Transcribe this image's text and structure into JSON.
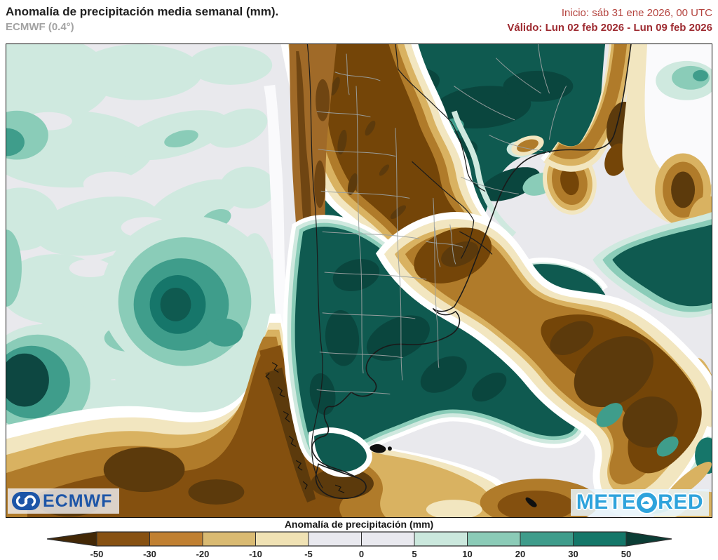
{
  "header": {
    "title": "Anomalía de precipitación media semanal (mm).",
    "model": "ECMWF (0.4°)",
    "init_label": "Inicio:  sáb 31 ene 2026, 00 UTC",
    "valid_label": "Válido: Lun 02 feb 2026 - Lun 09 feb 2026"
  },
  "map": {
    "logos": {
      "ecmwf": "ECMWF",
      "meteored_pre": "METE",
      "meteored_post": "RED"
    }
  },
  "legend": {
    "title": "Anomalía de precipitación (mm)",
    "ticks": [
      "-50",
      "-30",
      "-20",
      "-10",
      "-5",
      "0",
      "5",
      "10",
      "20",
      "30",
      "50"
    ],
    "segment_colors": [
      "#875112",
      "#c08032",
      "#d9ba72",
      "#f0e2b4",
      "#e9e9ef",
      "#e9e9ef",
      "#cbe8dd",
      "#8bcbb7",
      "#3f9c8b",
      "#147769"
    ],
    "arrow_left_color": "#432806",
    "arrow_right_color": "#0b3d35"
  },
  "colors": {
    "base_ocean": "#e9e9ed",
    "teal_5_10": "#cfe9df",
    "teal_10_20": "#8accb8",
    "teal_20_30": "#3f9d8b",
    "teal_30_50": "#16766a",
    "teal_50p": "#0f5a50",
    "teal_deep": "#0a463e",
    "teal_deepest": "#0d4741",
    "cream": "#f2e6c0",
    "tan": "#d9b261",
    "brown_20_30": "#b07b2a",
    "brown_30_50": "#84500f",
    "brown_50m": "#5c3a0c",
    "land_dark_brown": "#744508",
    "andes_ridge": "#a06a28",
    "andes_dark": "#6f4512",
    "border_black": "#1a1a1a",
    "admin_gray": "#9aa0a0",
    "ecmwf_blue": "#1d55a7",
    "meteored_blue": "#2ea3dc",
    "header_red": "#b4433e",
    "header_red_bold": "#9e2b31",
    "subtitle_gray": "#a3a3a3",
    "title_black": "#1f1f1f"
  }
}
